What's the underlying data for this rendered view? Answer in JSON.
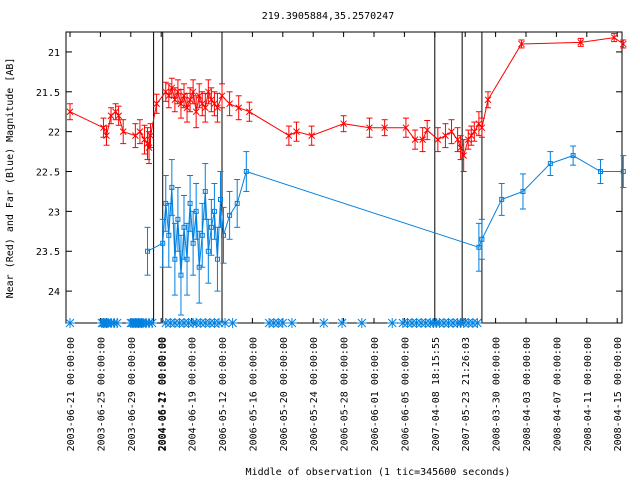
{
  "chart_data": {
    "type": "line",
    "title": "219.3905884,35.2570247",
    "xlabel": "Middle of observation (1 tic=345600 seconds)",
    "ylabel": "Near (Red) and Far (Blue) Magnitude [AB]",
    "ylim": [
      24.4,
      20.75
    ],
    "y_reversed": true,
    "yticks": [
      21,
      21.5,
      22,
      22.5,
      23,
      23.5,
      24
    ],
    "ytick_labels": [
      "21",
      "21.5",
      "22",
      "22.5",
      "23",
      "23.5",
      "24"
    ],
    "grid": false,
    "legend": "none",
    "x_tick_labels": [
      "2003-06-21 00:00:00",
      "2003-06-25 00:00:00",
      "2003-06-29 00:00:00",
      "2004-06-21 00:00:00",
      "2004-06-19 00:00:00",
      "2006-05-12 00:00:00",
      "2006-05-16 00:00:00",
      "2006-05-20 00:00:00",
      "2006-05-24 00:00:00",
      "2006-05-28 00:00:00",
      "2006-06-01 00:00:00",
      "2006-06-05 00:00:00",
      "2007-04-08 18:15:55",
      "2007-05-23 21:26:03",
      "2008-03-30 00:00:00",
      "2008-04-03 00:00:00",
      "2008-04-07 00:00:00",
      "2008-04-11 00:00:00",
      "2008-04-15 00:00:00"
    ],
    "overlap_tick_label": "2004-06-17 00:00:00",
    "x_tick_positions_index": [
      0,
      1,
      2,
      3,
      4,
      5,
      6,
      7,
      8,
      9,
      10,
      11,
      12,
      13,
      14,
      15,
      16,
      17,
      18
    ],
    "segment_boundaries_index": [
      2.75,
      3.05,
      5.0,
      12.0,
      12.9,
      13.55
    ],
    "observation_marks_index": [
      0.0,
      1.05,
      1.1,
      1.15,
      1.2,
      1.25,
      1.35,
      1.45,
      1.55,
      2.0,
      2.05,
      2.1,
      2.15,
      2.2,
      2.25,
      2.3,
      2.35,
      2.4,
      2.5,
      2.6,
      2.7,
      3.15,
      3.3,
      3.45,
      3.6,
      3.75,
      3.9,
      4.05,
      4.15,
      4.3,
      4.45,
      4.6,
      4.75,
      4.9,
      5.1,
      5.35,
      6.55,
      6.7,
      6.85,
      7.0,
      7.3,
      8.35,
      8.95,
      9.6,
      10.6,
      10.95,
      11.1,
      11.25,
      11.4,
      11.55,
      11.7,
      11.85,
      11.95,
      12.05,
      12.15,
      12.3,
      12.45,
      12.6,
      12.75,
      12.85,
      12.95,
      13.1,
      13.25,
      13.4
    ],
    "series": [
      {
        "name": "",
        "color": "#ff0000",
        "marker": "cross",
        "x_index": [
          0,
          1.1,
          1.2,
          1.35,
          1.5,
          1.6,
          1.75,
          2.15,
          2.3,
          2.45,
          2.55,
          2.6,
          2.65,
          2.85,
          3.15,
          3.25,
          3.35,
          3.45,
          3.55,
          3.65,
          3.75,
          3.85,
          3.95,
          4.05,
          4.15,
          4.25,
          4.35,
          4.45,
          4.55,
          4.65,
          4.75,
          4.85,
          5.0,
          5.25,
          5.55,
          5.9,
          7.2,
          7.45,
          7.95,
          9.0,
          9.85,
          10.35,
          11.05,
          11.35,
          11.6,
          11.75,
          12.1,
          12.35,
          12.55,
          12.75,
          12.85,
          12.95,
          13.1,
          13.2,
          13.3,
          13.45,
          13.55,
          13.75,
          14.85,
          16.8,
          17.9,
          18.2
        ],
        "y": [
          21.75,
          21.95,
          22.05,
          21.8,
          21.75,
          21.8,
          22.0,
          22.05,
          22.0,
          22.1,
          22.15,
          22.2,
          22.05,
          21.65,
          21.5,
          21.55,
          21.45,
          21.6,
          21.5,
          21.65,
          21.55,
          21.7,
          21.6,
          21.5,
          21.75,
          21.55,
          21.65,
          21.7,
          21.5,
          21.6,
          21.65,
          21.7,
          21.55,
          21.65,
          21.7,
          21.75,
          22.05,
          22.0,
          22.05,
          21.9,
          21.95,
          21.95,
          21.95,
          22.1,
          22.1,
          21.98,
          22.1,
          22.05,
          22.0,
          22.1,
          22.2,
          22.3,
          22.1,
          22.05,
          22.0,
          21.9,
          21.95,
          21.6,
          20.9,
          20.88,
          20.82,
          20.9
        ],
        "err": [
          0.1,
          0.12,
          0.12,
          0.1,
          0.1,
          0.12,
          0.15,
          0.15,
          0.15,
          0.18,
          0.2,
          0.2,
          0.15,
          0.12,
          0.12,
          0.15,
          0.12,
          0.15,
          0.15,
          0.18,
          0.15,
          0.18,
          0.15,
          0.15,
          0.2,
          0.15,
          0.15,
          0.18,
          0.15,
          0.15,
          0.15,
          0.18,
          0.15,
          0.15,
          0.15,
          0.12,
          0.12,
          0.12,
          0.12,
          0.1,
          0.12,
          0.1,
          0.12,
          0.12,
          0.15,
          0.12,
          0.15,
          0.15,
          0.15,
          0.15,
          0.15,
          0.2,
          0.12,
          0.12,
          0.12,
          0.15,
          0.12,
          0.1,
          0.05,
          0.05,
          0.05,
          0.05
        ]
      },
      {
        "name": "",
        "color": "#0080e0",
        "marker": "square",
        "x_index": [
          2.55,
          3.05,
          3.15,
          3.25,
          3.35,
          3.45,
          3.55,
          3.65,
          3.75,
          3.85,
          3.95,
          4.05,
          4.15,
          4.25,
          4.35,
          4.45,
          4.55,
          4.65,
          4.75,
          4.85,
          4.95,
          5.05,
          5.25,
          5.5,
          5.8,
          13.45,
          13.55,
          14.2,
          14.9,
          15.8,
          16.55,
          17.45,
          18.2
        ],
        "y": [
          23.5,
          23.4,
          22.9,
          23.3,
          22.7,
          23.6,
          23.1,
          23.8,
          23.2,
          23.6,
          22.9,
          23.4,
          23.0,
          23.7,
          23.3,
          22.75,
          23.5,
          23.2,
          23.0,
          23.6,
          22.85,
          23.3,
          23.05,
          22.9,
          22.5,
          23.45,
          23.35,
          22.85,
          22.75,
          22.4,
          22.3,
          22.5,
          22.5
        ],
        "err": [
          0.3,
          0.3,
          0.35,
          0.4,
          0.35,
          0.45,
          0.4,
          0.5,
          0.4,
          0.45,
          0.35,
          0.4,
          0.35,
          0.45,
          0.4,
          0.35,
          0.4,
          0.35,
          0.35,
          0.4,
          0.35,
          0.35,
          0.3,
          0.3,
          0.25,
          0.3,
          0.25,
          0.2,
          0.22,
          0.15,
          0.12,
          0.15,
          0.2
        ]
      }
    ]
  }
}
